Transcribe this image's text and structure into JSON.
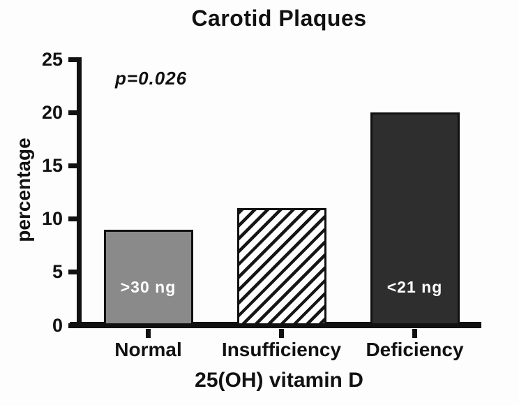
{
  "chart_data": {
    "type": "bar",
    "title": "Carotid Plaques",
    "categories": [
      "Normal",
      "Insufficiency",
      "Deficiency"
    ],
    "values": [
      9,
      11,
      20
    ],
    "bar_inside_labels": [
      ">30 ng",
      "",
      "<21 ng"
    ],
    "bar_styles": [
      {
        "fill": "solid",
        "color": "#8a8a8a"
      },
      {
        "fill": "hatch-diagonal",
        "color": "#161616",
        "background": "#ffffff"
      },
      {
        "fill": "solid",
        "color": "#2e2e2e"
      }
    ],
    "xlabel": "25(OH) vitamin D",
    "ylabel": "percentage",
    "ylim": [
      0,
      25
    ],
    "yticks": [
      0,
      5,
      10,
      15,
      20,
      25
    ],
    "annotation": "p=0.026",
    "grid": false,
    "legend": false
  },
  "colors": {
    "axis": "#111111",
    "text": "#111111",
    "bar_inside_label_text": "#ffffff",
    "background": "#fdfdfd"
  }
}
